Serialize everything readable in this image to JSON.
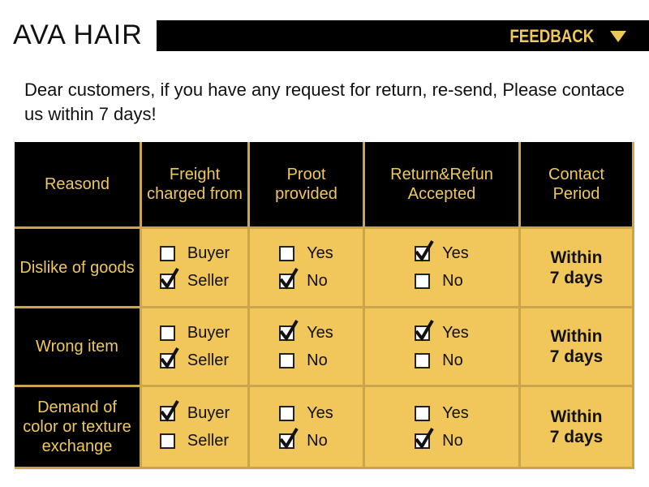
{
  "header": {
    "brand": "AVA HAIR",
    "tab": "FEEDBACK"
  },
  "notice": "Dear customers, if you have any request for return, re-send, Please contace us within 7 days!",
  "table": {
    "headers": [
      "Reasond",
      "Freight charged from",
      "Proot provided",
      "Return&Refun Accepted",
      "Contact Period"
    ],
    "rows": [
      {
        "reason": "Dislike of goods",
        "options": [
          [
            {
              "label": "Buyer",
              "checked": false
            },
            {
              "label": "Seller",
              "checked": true
            }
          ],
          [
            {
              "label": "Yes",
              "checked": false
            },
            {
              "label": "No",
              "checked": true
            }
          ],
          [
            {
              "label": "Yes",
              "checked": true
            },
            {
              "label": "No",
              "checked": false
            }
          ]
        ],
        "period": "Within 7 days"
      },
      {
        "reason": "Wrong item",
        "options": [
          [
            {
              "label": "Buyer",
              "checked": false
            },
            {
              "label": "Seller",
              "checked": true
            }
          ],
          [
            {
              "label": "Yes",
              "checked": true
            },
            {
              "label": "No",
              "checked": false
            }
          ],
          [
            {
              "label": "Yes",
              "checked": true
            },
            {
              "label": "No",
              "checked": false
            }
          ]
        ],
        "period": "Within 7 days"
      },
      {
        "reason": "Demand of color or texture exchange",
        "options": [
          [
            {
              "label": "Buyer",
              "checked": true
            },
            {
              "label": "Seller",
              "checked": false
            }
          ],
          [
            {
              "label": "Yes",
              "checked": false
            },
            {
              "label": "No",
              "checked": true
            }
          ],
          [
            {
              "label": "Yes",
              "checked": false
            },
            {
              "label": "No",
              "checked": true
            }
          ]
        ],
        "period": "Within 7 days"
      }
    ]
  }
}
